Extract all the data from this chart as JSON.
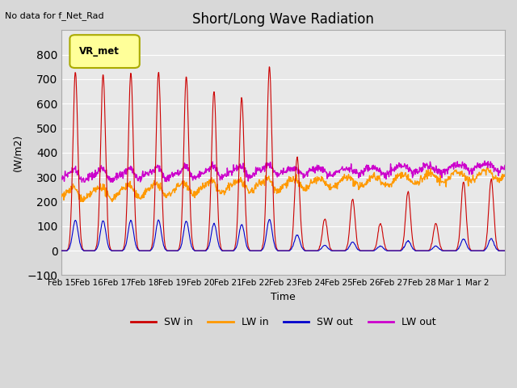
{
  "title": "Short/Long Wave Radiation",
  "ylabel": "(W/m2)",
  "xlabel": "Time",
  "note": "No data for f_Net_Rad",
  "legend_label": "VR_met",
  "ylim": [
    -100,
    900
  ],
  "yticks": [
    -100,
    0,
    100,
    200,
    300,
    400,
    500,
    600,
    700,
    800
  ],
  "xtick_labels": [
    "Feb 15",
    "Feb 16",
    "Feb 17",
    "Feb 18",
    "Feb 19",
    "Feb 20",
    "Feb 21",
    "Feb 22",
    "Feb 23",
    "Feb 24",
    "Feb 25",
    "Feb 26",
    "Feb 27",
    "Feb 28",
    "Mar 1",
    "Mar 2"
  ],
  "series_colors": {
    "SW_in": "#cc0000",
    "LW_in": "#ff9900",
    "SW_out": "#0000cc",
    "LW_out": "#cc00cc"
  },
  "legend_labels": [
    "SW in",
    "LW in",
    "SW out",
    "LW out"
  ],
  "bg_color": "#e8e8e8",
  "n_points": 1056,
  "days": 16,
  "sw_peaks_by_day": [
    730,
    720,
    725,
    730,
    710,
    650,
    625,
    750,
    380,
    130,
    210,
    110,
    240,
    110,
    280,
    290
  ]
}
